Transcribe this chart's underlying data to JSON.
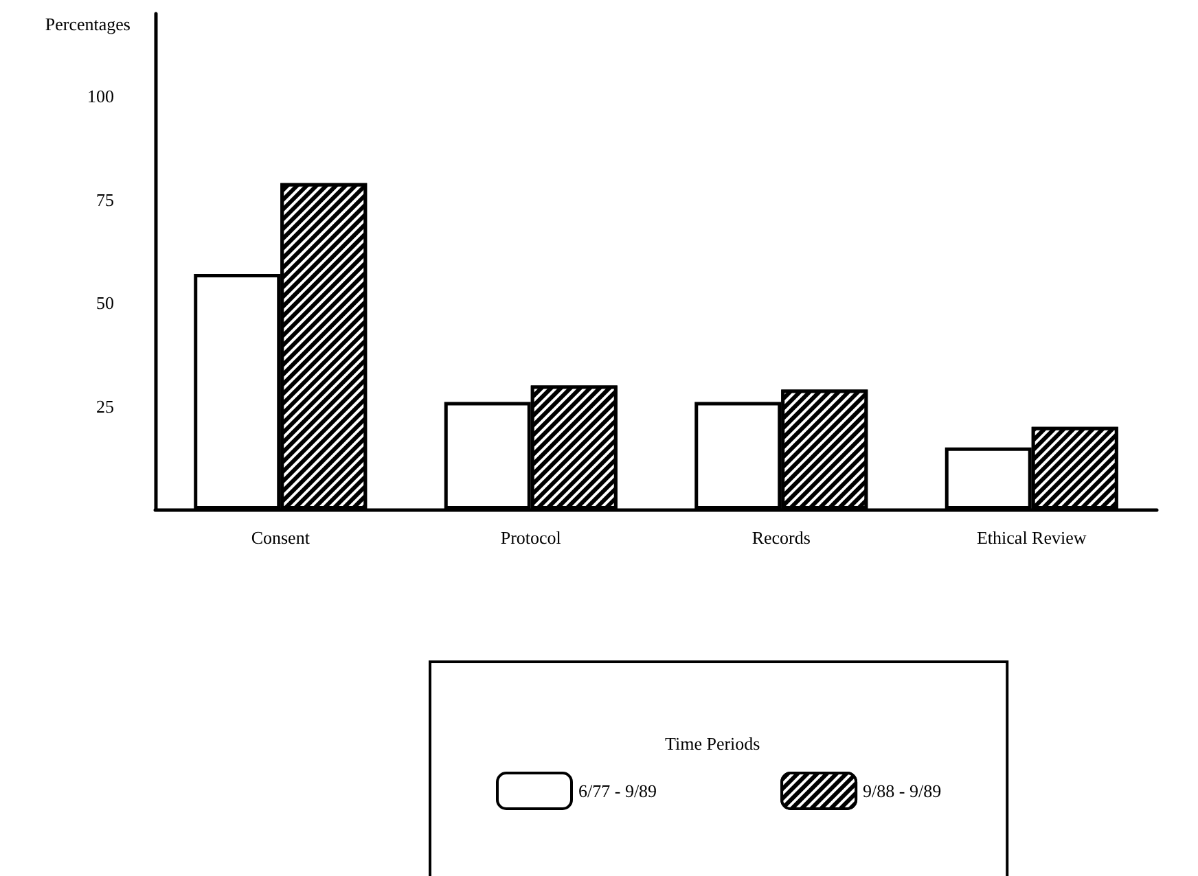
{
  "chart_data": {
    "type": "bar",
    "ylabel": "Percentages",
    "legend_title": "Time Periods",
    "categories": [
      "Consent",
      "Protocol",
      "Records",
      "Ethical Review"
    ],
    "series": [
      {
        "name": "6/77 - 9/89",
        "color": "#ffffff",
        "values": [
          57,
          26,
          26,
          15
        ]
      },
      {
        "name": "9/88 - 9/89",
        "color": "#000000",
        "values": [
          79,
          30,
          29,
          20
        ]
      }
    ],
    "ylim": [
      0,
      120
    ],
    "yticks": [
      25,
      50,
      75,
      100
    ],
    "grid": false,
    "legend": "bottom"
  }
}
